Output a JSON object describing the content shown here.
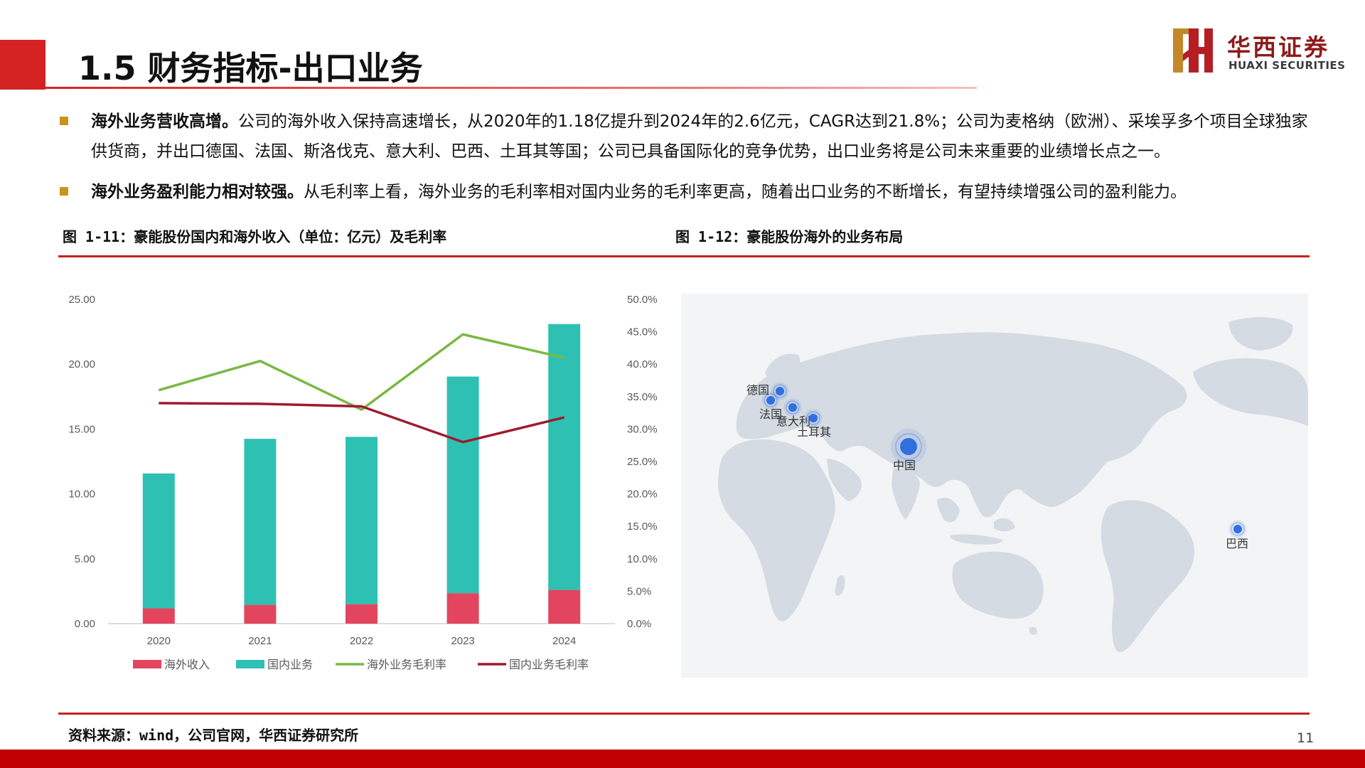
{
  "slide": {
    "title": "1.5 财务指标-出口业务",
    "page_number": "11",
    "source_note": "资料来源：wind，公司官网，华西证券研究所"
  },
  "logo": {
    "cn": "华西证券",
    "en": "HUAXI SECURITIES"
  },
  "bullets": [
    {
      "bold": "海外业务营收高增。",
      "text": "公司的海外收入保持高速增长，从2020年的1.18亿提升到2024年的2.6亿元，CAGR达到21.8%；公司为麦格纳（欧洲）、采埃孚多个项目全球独家供货商，并出口德国、法国、斯洛伐克、意大利、巴西、土耳其等国；公司已具备国际化的竞争优势，出口业务将是公司未来重要的业绩增长点之一。"
    },
    {
      "bold": "海外业务盈利能力相对较强。",
      "text": "从毛利率上看，海外业务的毛利率相对国内业务的毛利率更高，随着出口业务的不断增长，有望持续增强公司的盈利能力。"
    }
  ],
  "figures": {
    "left_caption": "图 1-11：豪能股份国内和海外收入（单位：亿元）及毛利率",
    "right_caption": "图 1-12：豪能股份海外的业务布局"
  },
  "chart_data": {
    "type": "bar",
    "stacked": true,
    "categories": [
      "2020",
      "2021",
      "2022",
      "2023",
      "2024"
    ],
    "series": [
      {
        "name": "海外收入",
        "axis": "left",
        "kind": "bar",
        "color": "#e3455f",
        "values": [
          1.18,
          1.45,
          1.5,
          2.35,
          2.6
        ]
      },
      {
        "name": "国内业务",
        "axis": "left",
        "kind": "bar",
        "color": "#2ec1b3",
        "values": [
          10.4,
          12.8,
          12.9,
          16.7,
          20.5
        ]
      },
      {
        "name": "海外业务毛利率",
        "axis": "right",
        "kind": "line",
        "color": "#7ab843",
        "values": [
          36.0,
          40.5,
          33.0,
          44.6,
          41.0
        ]
      },
      {
        "name": "国内业务毛利率",
        "axis": "right",
        "kind": "line",
        "color": "#9e1b2e",
        "values": [
          34.0,
          33.9,
          33.5,
          28.0,
          31.8
        ]
      }
    ],
    "y_left": {
      "range": [
        0,
        25
      ],
      "ticks": [
        "0.00",
        "5.00",
        "10.00",
        "15.00",
        "20.00",
        "25.00"
      ]
    },
    "y_right": {
      "range": [
        0,
        50
      ],
      "ticks": [
        "0.0%",
        "5.0%",
        "10.0%",
        "15.0%",
        "20.0%",
        "25.0%",
        "30.0%",
        "35.0%",
        "40.0%",
        "45.0%",
        "50.0%"
      ]
    },
    "grid": false,
    "legend": "bottom"
  },
  "map": {
    "markers": [
      {
        "label": "德国"
      },
      {
        "label": "法国"
      },
      {
        "label": "意大利"
      },
      {
        "label": "土耳其"
      },
      {
        "label": "中国"
      },
      {
        "label": "巴西"
      }
    ]
  },
  "colors": {
    "accent_red": "#d42222",
    "bullet_gold": "#c7951a",
    "map_land": "#d5dbe3",
    "map_bg": "#f3f4f6",
    "marker_blue": "#2f6fe0"
  }
}
